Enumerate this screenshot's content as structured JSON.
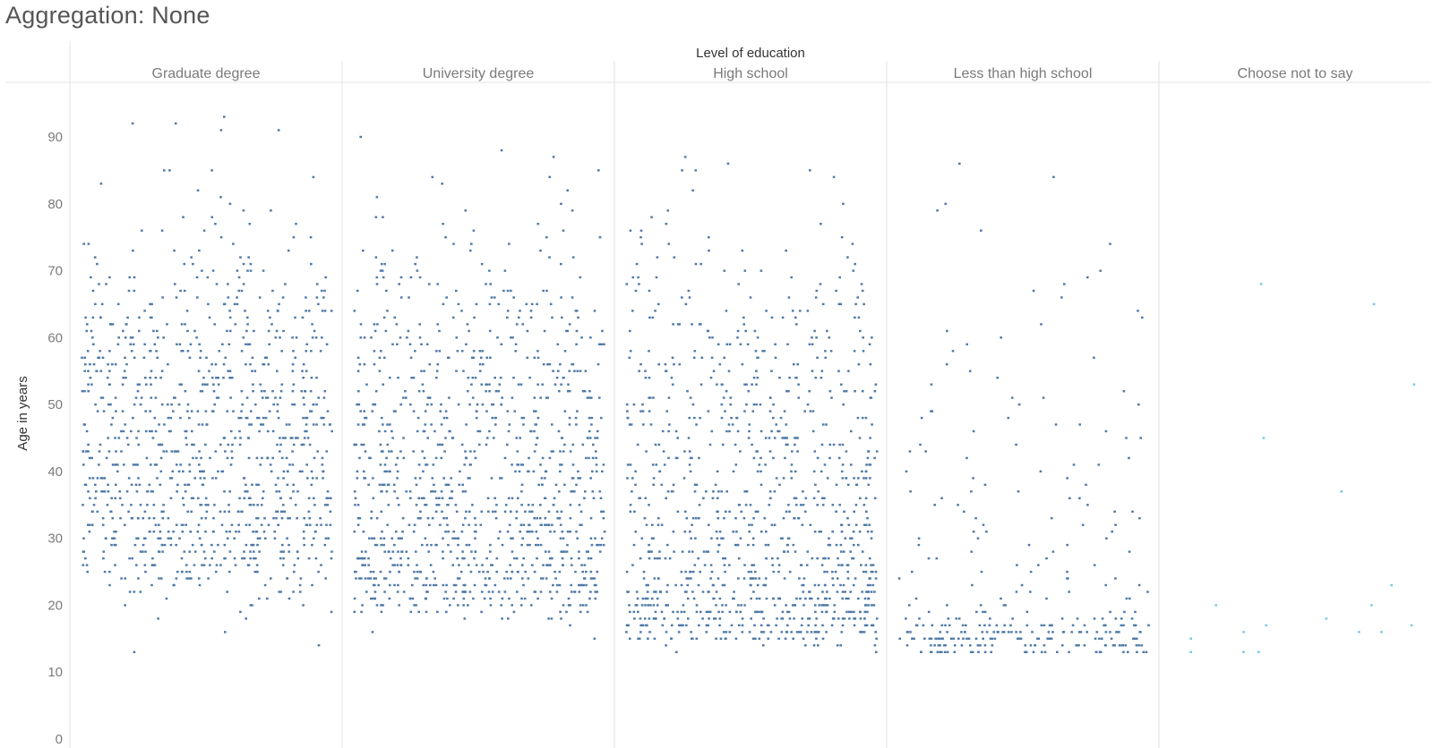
{
  "title": "Aggregation: None",
  "chart_data": {
    "type": "scatter",
    "xlabel": "Level of education",
    "ylabel": "Age in years",
    "categories": [
      "Graduate degree",
      "University degree",
      "High school",
      "Less than high school",
      "Choose not to say"
    ],
    "yticks": [
      "0",
      "10",
      "20",
      "30",
      "40",
      "50",
      "60",
      "70",
      "80",
      "90"
    ],
    "ylim": [
      0,
      97
    ],
    "grid": false,
    "colors": {
      "primary": "#4e79a7",
      "secondary": "#76c7e8"
    },
    "series": [
      {
        "category": "Graduate degree",
        "color": "#4e79a7",
        "density_by_age": {
          "18": 2,
          "20": 4,
          "22": 8,
          "24": 16,
          "26": 22,
          "28": 26,
          "30": 28,
          "32": 28,
          "34": 26,
          "36": 25,
          "38": 24,
          "40": 23,
          "42": 22,
          "44": 22,
          "46": 22,
          "48": 22,
          "50": 21,
          "52": 20,
          "54": 20,
          "56": 18,
          "58": 18,
          "60": 16,
          "62": 14,
          "64": 12,
          "66": 10,
          "68": 8,
          "70": 6,
          "72": 4,
          "74": 3,
          "76": 3,
          "78": 2,
          "80": 1,
          "82": 1,
          "85": 1
        },
        "outliers": [
          13,
          14,
          16,
          92,
          92,
          91,
          91,
          93,
          85,
          85
        ]
      },
      {
        "category": "University degree",
        "color": "#4e79a7",
        "density_by_age": {
          "18": 6,
          "19": 14,
          "20": 22,
          "21": 28,
          "22": 32,
          "23": 34,
          "24": 34,
          "25": 33,
          "26": 32,
          "27": 30,
          "28": 30,
          "29": 28,
          "30": 27,
          "32": 26,
          "34": 24,
          "36": 23,
          "38": 22,
          "40": 21,
          "42": 20,
          "44": 19,
          "46": 19,
          "48": 18,
          "50": 17,
          "52": 16,
          "54": 15,
          "56": 14,
          "58": 13,
          "60": 12,
          "62": 10,
          "64": 9,
          "66": 8,
          "68": 6,
          "70": 5,
          "72": 4,
          "74": 3,
          "76": 2,
          "78": 2,
          "80": 1,
          "82": 1,
          "84": 1
        },
        "outliers": [
          15,
          16,
          17,
          88,
          87,
          90,
          85,
          84
        ]
      },
      {
        "category": "High school",
        "color": "#4e79a7",
        "density_by_age": {
          "14": 8,
          "15": 26,
          "16": 36,
          "17": 40,
          "18": 42,
          "19": 42,
          "20": 40,
          "21": 38,
          "22": 34,
          "23": 30,
          "24": 28,
          "25": 26,
          "26": 24,
          "28": 22,
          "30": 20,
          "32": 19,
          "34": 18,
          "36": 17,
          "38": 16,
          "40": 16,
          "42": 15,
          "44": 15,
          "46": 14,
          "48": 14,
          "50": 13,
          "52": 12,
          "54": 12,
          "56": 11,
          "58": 10,
          "60": 9,
          "62": 8,
          "64": 7,
          "66": 6,
          "68": 5,
          "70": 4,
          "72": 3,
          "74": 3,
          "76": 2,
          "78": 1,
          "80": 1
        },
        "outliers": [
          13,
          13,
          87,
          85,
          85,
          86,
          85,
          82,
          84
        ]
      },
      {
        "category": "Less than high school",
        "color": "#4e79a7",
        "density_by_age": {
          "13": 32,
          "14": 36,
          "15": 40,
          "16": 38,
          "17": 30,
          "18": 14,
          "19": 8,
          "20": 5,
          "22": 4,
          "24": 4,
          "26": 3,
          "28": 3,
          "30": 3,
          "32": 3,
          "34": 3,
          "36": 3,
          "38": 2,
          "40": 2,
          "42": 2,
          "44": 2,
          "46": 2,
          "48": 2,
          "50": 2,
          "52": 1,
          "54": 1,
          "56": 1,
          "58": 1,
          "60": 1,
          "62": 1,
          "66": 1,
          "68": 1,
          "74": 1
        },
        "outliers": [
          86,
          84,
          79,
          80,
          76
        ]
      },
      {
        "category": "Choose not to say",
        "color": "#76c7e8",
        "points": [
          [
            0.08,
            15
          ],
          [
            0.08,
            13
          ],
          [
            0.18,
            20
          ],
          [
            0.29,
            13
          ],
          [
            0.29,
            16
          ],
          [
            0.35,
            13
          ],
          [
            0.36,
            68
          ],
          [
            0.38,
            17
          ],
          [
            0.37,
            45
          ],
          [
            0.62,
            18
          ],
          [
            0.68,
            37
          ],
          [
            0.75,
            16
          ],
          [
            0.8,
            20
          ],
          [
            0.81,
            65
          ],
          [
            0.84,
            16
          ],
          [
            0.88,
            23
          ],
          [
            0.96,
            17
          ],
          [
            0.97,
            53
          ]
        ]
      }
    ]
  }
}
